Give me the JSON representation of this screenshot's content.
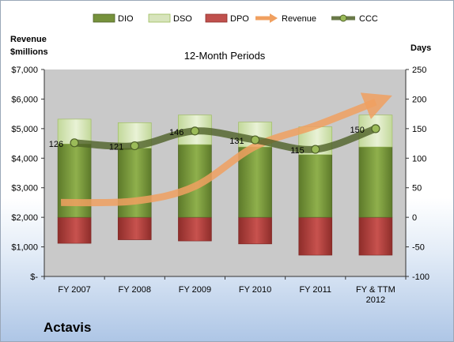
{
  "company": "Actavis",
  "chart_data": {
    "type": "bar",
    "title": "12-Month Periods",
    "y_left_label": [
      "Revenue",
      "$millions"
    ],
    "y_right_label": "Days",
    "categories": [
      [
        "FY 2007"
      ],
      [
        "FY 2008"
      ],
      [
        "FY 2009"
      ],
      [
        "FY 2010"
      ],
      [
        "FY 2011"
      ],
      [
        "FY & TTM",
        "2012"
      ]
    ],
    "y_left_range": [
      0,
      7000
    ],
    "y_left_ticks": [
      "$-",
      "$1,000",
      "$2,000",
      "$3,000",
      "$4,000",
      "$5,000",
      "$6,000",
      "$7,000"
    ],
    "y_right_range": [
      -100,
      250
    ],
    "y_right_ticks": [
      "-100",
      "-50",
      "0",
      "50",
      "100",
      "150",
      "200",
      "250"
    ],
    "legend_position": "top",
    "grid": false,
    "series": [
      {
        "name": "DIO",
        "kind": "stacked-bar",
        "color": "#76923c",
        "values": [
          124,
          117,
          123,
          119,
          106,
          119
        ]
      },
      {
        "name": "DSO",
        "kind": "stacked-bar",
        "color": "#d7e4bc",
        "values": [
          42,
          43,
          50,
          42,
          47,
          54
        ]
      },
      {
        "name": "DPO",
        "kind": "stacked-bar-negative",
        "color": "#c0504d",
        "values": [
          -44,
          -38,
          -40,
          -45,
          -64,
          -64
        ]
      },
      {
        "name": "Revenue",
        "kind": "arrow-line",
        "color": "#f0a060",
        "axis": "left",
        "values": [
          2500,
          2550,
          3050,
          4400,
          5100,
          5900
        ]
      },
      {
        "name": "CCC",
        "kind": "line",
        "color": "#4f6228",
        "axis": "right",
        "values": [
          126,
          121,
          146,
          131,
          115,
          150
        ],
        "labels": [
          "126",
          "121",
          "146",
          "131",
          "115",
          "150"
        ]
      }
    ]
  }
}
